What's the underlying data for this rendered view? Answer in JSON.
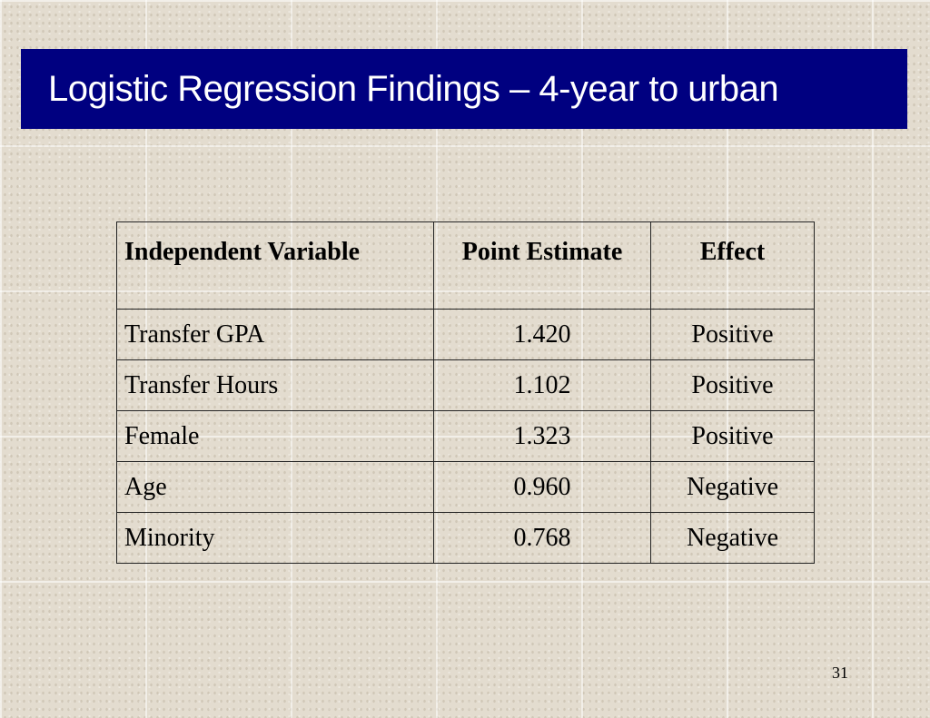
{
  "slide": {
    "title": "Logistic Regression Findings – 4-year to urban",
    "page_number": "31"
  },
  "table": {
    "headers": {
      "variable": "Independent Variable",
      "estimate": "Point Estimate",
      "effect": "Effect"
    },
    "rows": [
      {
        "variable": "Transfer GPA",
        "estimate": "1.420",
        "effect": "Positive"
      },
      {
        "variable": "Transfer Hours",
        "estimate": "1.102",
        "effect": "Positive"
      },
      {
        "variable": "Female",
        "estimate": "1.323",
        "effect": "Positive"
      },
      {
        "variable": "Age",
        "estimate": "0.960",
        "effect": "Negative"
      },
      {
        "variable": "Minority",
        "estimate": "0.768",
        "effect": "Negative"
      }
    ]
  },
  "colors": {
    "banner": "#000080",
    "title_text": "#ffffff",
    "background": "#e3dccf"
  }
}
